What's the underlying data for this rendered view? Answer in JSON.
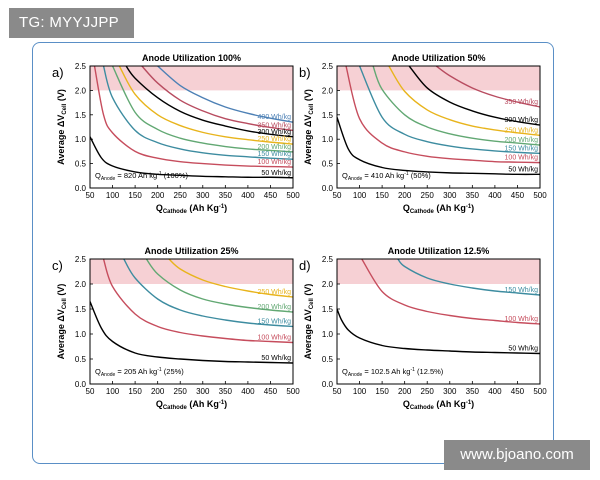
{
  "watermark_top": "TG: MYYJJPP",
  "watermark_bottom": "www.bjoano.com",
  "colors": {
    "frame": "#5a8fc6",
    "shade": "#f6d0d4",
    "400": "#4d80b5",
    "350": "#b84c60",
    "300": "#000000",
    "250": "#e8b41c",
    "200": "#62a873",
    "150": "#3d8ca0",
    "100": "#c64d5d",
    "50": "#000000"
  },
  "chart_data": [
    {
      "type": "line",
      "panel": "a)",
      "title": "Anode Utilization 100%",
      "annotation": "Q_Anode = 820 Ah kg^-1 (100%)",
      "ann_q": "Q",
      "ann_sub": "Anode",
      "ann_rest": " = 820 Ah kg",
      "ann_sup": "-1",
      "ann_pct": " (100%)",
      "ylabel": "Average ΔV_Cell (V)",
      "xlabel": "Q_Cathode (Ah Kg^-1)",
      "xlim": [
        50,
        500
      ],
      "ylim": [
        0,
        2.5
      ],
      "xticks": [
        50,
        100,
        150,
        200,
        250,
        300,
        350,
        400,
        450,
        500
      ],
      "yticks": [
        0.0,
        0.5,
        1.0,
        1.5,
        2.0,
        2.5
      ],
      "shaded_region": [
        2.0,
        2.5
      ],
      "series": [
        {
          "name": "400 Wh/kg",
          "color_key": "400",
          "x": [
            200,
            250,
            300,
            350,
            400,
            450,
            500
          ],
          "y": [
            2.5,
            2.1,
            1.85,
            1.66,
            1.53,
            1.43,
            1.35
          ]
        },
        {
          "name": "350 Wh/kg",
          "color_key": "350",
          "x": [
            165,
            200,
            250,
            300,
            350,
            400,
            450,
            500
          ],
          "y": [
            2.5,
            2.15,
            1.8,
            1.58,
            1.42,
            1.32,
            1.24,
            1.18
          ]
        },
        {
          "name": "300 Wh/kg",
          "color_key": "300",
          "x": [
            130,
            150,
            200,
            250,
            300,
            350,
            400,
            450,
            500
          ],
          "y": [
            2.5,
            2.25,
            1.85,
            1.57,
            1.39,
            1.27,
            1.17,
            1.1,
            1.05
          ]
        },
        {
          "name": "250 Wh/kg",
          "color_key": "250",
          "x": [
            115,
            150,
            200,
            250,
            300,
            350,
            400,
            450,
            500
          ],
          "y": [
            2.5,
            1.92,
            1.5,
            1.28,
            1.14,
            1.05,
            0.99,
            0.94,
            0.9
          ]
        },
        {
          "name": "200 Wh/kg",
          "color_key": "200",
          "x": [
            100,
            150,
            200,
            250,
            300,
            350,
            400,
            450,
            500
          ],
          "y": [
            2.5,
            1.55,
            1.2,
            1.02,
            0.92,
            0.85,
            0.8,
            0.77,
            0.74
          ]
        },
        {
          "name": "150 Wh/kg",
          "color_key": "150",
          "x": [
            80,
            100,
            150,
            200,
            250,
            300,
            350,
            400,
            450,
            500
          ],
          "y": [
            2.5,
            1.85,
            1.18,
            0.93,
            0.8,
            0.72,
            0.67,
            0.64,
            0.61,
            0.59
          ]
        },
        {
          "name": "100 Wh/kg",
          "color_key": "100",
          "x": [
            60,
            80,
            100,
            150,
            200,
            250,
            300,
            350,
            400,
            450,
            500
          ],
          "y": [
            2.5,
            1.5,
            1.13,
            0.75,
            0.61,
            0.54,
            0.5,
            0.47,
            0.45,
            0.44,
            0.43
          ]
        },
        {
          "name": "50 Wh/kg",
          "color_key": "50",
          "x": [
            50,
            75,
            100,
            150,
            200,
            250,
            300,
            350,
            400,
            450,
            500
          ],
          "y": [
            1.05,
            0.62,
            0.45,
            0.33,
            0.28,
            0.26,
            0.24,
            0.23,
            0.22,
            0.22,
            0.21
          ]
        }
      ]
    },
    {
      "type": "line",
      "panel": "b)",
      "title": "Anode Utilization 50%",
      "annotation": "Q_Anode = 410 Ah kg^-1 (50%)",
      "ann_q": "Q",
      "ann_sub": "Anode",
      "ann_rest": " = 410 Ah kg",
      "ann_sup": "-1",
      "ann_pct": " (50%)",
      "ylabel": "Average ΔV_Cell (V)",
      "xlabel": "Q_Cathode (Ah Kg^-1)",
      "xlim": [
        50,
        500
      ],
      "ylim": [
        0,
        2.5
      ],
      "xticks": [
        50,
        100,
        150,
        200,
        250,
        300,
        350,
        400,
        450,
        500
      ],
      "yticks": [
        0.0,
        0.5,
        1.0,
        1.5,
        2.0,
        2.5
      ],
      "shaded_region": [
        2.0,
        2.5
      ],
      "series": [
        {
          "name": "350 Wh/kg",
          "color_key": "350",
          "x": [
            270,
            300,
            350,
            400,
            450,
            500
          ],
          "y": [
            2.5,
            2.3,
            2.05,
            1.88,
            1.76,
            1.66
          ]
        },
        {
          "name": "300 Wh/kg",
          "color_key": "300",
          "x": [
            210,
            250,
            300,
            350,
            400,
            450,
            500
          ],
          "y": [
            2.5,
            2.05,
            1.76,
            1.58,
            1.45,
            1.36,
            1.29
          ]
        },
        {
          "name": "250 Wh/kg",
          "color_key": "250",
          "x": [
            165,
            200,
            250,
            300,
            350,
            400,
            450,
            500
          ],
          "y": [
            2.5,
            1.98,
            1.6,
            1.4,
            1.27,
            1.19,
            1.13,
            1.08
          ]
        },
        {
          "name": "200 Wh/kg",
          "color_key": "200",
          "x": [
            130,
            150,
            200,
            250,
            300,
            350,
            400,
            450,
            500
          ],
          "y": [
            2.5,
            2.02,
            1.5,
            1.25,
            1.11,
            1.02,
            0.96,
            0.92,
            0.88
          ]
        },
        {
          "name": "150 Wh/kg",
          "color_key": "150",
          "x": [
            100,
            150,
            200,
            250,
            300,
            350,
            400,
            450,
            500
          ],
          "y": [
            2.5,
            1.45,
            1.1,
            0.95,
            0.86,
            0.8,
            0.76,
            0.73,
            0.71
          ]
        },
        {
          "name": "100 Wh/kg",
          "color_key": "100",
          "x": [
            70,
            100,
            150,
            200,
            250,
            300,
            350,
            400,
            450,
            500
          ],
          "y": [
            2.5,
            1.42,
            0.92,
            0.74,
            0.65,
            0.6,
            0.57,
            0.54,
            0.53,
            0.52
          ]
        },
        {
          "name": "50 Wh/kg",
          "color_key": "50",
          "x": [
            50,
            75,
            100,
            150,
            200,
            250,
            300,
            350,
            400,
            450,
            500
          ],
          "y": [
            1.45,
            0.8,
            0.58,
            0.42,
            0.36,
            0.33,
            0.31,
            0.3,
            0.29,
            0.28,
            0.28
          ]
        }
      ]
    },
    {
      "type": "line",
      "panel": "c)",
      "title": "Anode Utilization 25%",
      "annotation": "Q_Anode = 205 Ah kg^-1 (25%)",
      "ann_q": "Q",
      "ann_sub": "Anode",
      "ann_rest": " = 205 Ah kg",
      "ann_sup": "-1",
      "ann_pct": " (25%)",
      "ylabel": "Average ΔV_Cell (V)",
      "xlabel": "Q_Cathode (Ah Kg^-1)",
      "xlim": [
        50,
        500
      ],
      "ylim": [
        0,
        2.5
      ],
      "xticks": [
        50,
        100,
        150,
        200,
        250,
        300,
        350,
        400,
        450,
        500
      ],
      "yticks": [
        0.0,
        0.5,
        1.0,
        1.5,
        2.0,
        2.5
      ],
      "shaded_region": [
        2.0,
        2.5
      ],
      "series": [
        {
          "name": "250 Wh/kg",
          "color_key": "250",
          "x": [
            225,
            250,
            300,
            350,
            400,
            450,
            500
          ],
          "y": [
            2.5,
            2.3,
            2.08,
            1.95,
            1.86,
            1.79,
            1.74
          ]
        },
        {
          "name": "200 Wh/kg",
          "color_key": "200",
          "x": [
            175,
            200,
            250,
            300,
            350,
            400,
            450,
            500
          ],
          "y": [
            2.5,
            2.2,
            1.88,
            1.7,
            1.6,
            1.53,
            1.48,
            1.44
          ]
        },
        {
          "name": "150 Wh/kg",
          "color_key": "150",
          "x": [
            125,
            150,
            200,
            250,
            300,
            350,
            400,
            450,
            500
          ],
          "y": [
            2.5,
            2.12,
            1.7,
            1.48,
            1.36,
            1.28,
            1.22,
            1.18,
            1.15
          ]
        },
        {
          "name": "100 Wh/kg",
          "color_key": "100",
          "x": [
            80,
            100,
            150,
            200,
            250,
            300,
            350,
            400,
            450,
            500
          ],
          "y": [
            2.5,
            1.95,
            1.4,
            1.15,
            1.03,
            0.96,
            0.91,
            0.87,
            0.85,
            0.83
          ]
        },
        {
          "name": "50 Wh/kg",
          "color_key": "50",
          "x": [
            50,
            75,
            100,
            150,
            200,
            250,
            300,
            350,
            400,
            450,
            500
          ],
          "y": [
            1.65,
            1.12,
            0.85,
            0.62,
            0.54,
            0.5,
            0.47,
            0.45,
            0.44,
            0.43,
            0.42
          ]
        }
      ]
    },
    {
      "type": "line",
      "panel": "d)",
      "title": "Anode Utilization 12.5%",
      "annotation": "Q_Anode = 102.5 Ah kg^-1 (12.5%)",
      "ann_q": "Q",
      "ann_sub": "Anode",
      "ann_rest": " = 102.5 Ah kg",
      "ann_sup": "-1",
      "ann_pct": " (12.5%)",
      "ylabel": "Average ΔV_Cell (V)",
      "xlabel": "Q_Cathode (Ah Kg^-1)",
      "xlim": [
        50,
        500
      ],
      "ylim": [
        0,
        2.5
      ],
      "xticks": [
        50,
        100,
        150,
        200,
        250,
        300,
        350,
        400,
        450,
        500
      ],
      "yticks": [
        0.0,
        0.5,
        1.0,
        1.5,
        2.0,
        2.5
      ],
      "shaded_region": [
        2.0,
        2.5
      ],
      "series": [
        {
          "name": "150 Wh/kg",
          "color_key": "150",
          "x": [
            185,
            200,
            250,
            300,
            350,
            400,
            450,
            500
          ],
          "y": [
            2.5,
            2.35,
            2.12,
            2.0,
            1.92,
            1.86,
            1.82,
            1.78
          ]
        },
        {
          "name": "100 Wh/kg",
          "color_key": "100",
          "x": [
            105,
            150,
            200,
            250,
            300,
            350,
            400,
            450,
            500
          ],
          "y": [
            2.5,
            1.85,
            1.58,
            1.45,
            1.37,
            1.31,
            1.27,
            1.23,
            1.2
          ]
        },
        {
          "name": "50 Wh/kg",
          "color_key": "50",
          "x": [
            50,
            60,
            75,
            100,
            150,
            200,
            250,
            300,
            350,
            400,
            450,
            500
          ],
          "y": [
            1.5,
            1.28,
            1.08,
            0.92,
            0.77,
            0.71,
            0.68,
            0.66,
            0.64,
            0.63,
            0.62,
            0.61
          ]
        }
      ]
    }
  ]
}
